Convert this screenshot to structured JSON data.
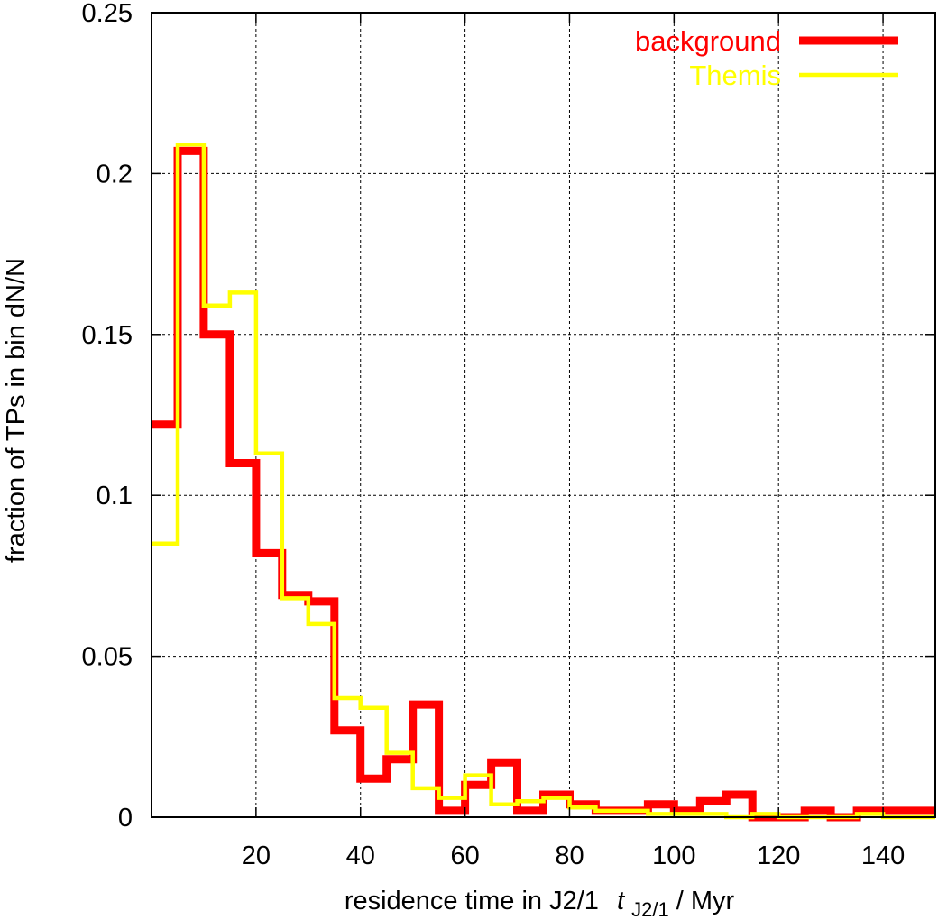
{
  "chart_data": {
    "type": "line",
    "step": true,
    "xlabel": "residence time in J2/1",
    "xlabel_symbol": "t",
    "xlabel_subscript": "J2/1",
    "xlabel_unit": " / Myr",
    "ylabel": "fraction of TPs in bin  dN/N",
    "xlim": [
      0,
      150
    ],
    "ylim": [
      0,
      0.25
    ],
    "xticks": [
      20,
      40,
      60,
      80,
      100,
      120,
      140
    ],
    "yticks": [
      0,
      0.05,
      0.1,
      0.15,
      0.2,
      0.25
    ],
    "ytick_labels": [
      "0",
      "0.05",
      "0.1",
      "0.15",
      "0.2",
      "0.25"
    ],
    "grid": true,
    "legend_position": "top-right",
    "bin_edges": [
      0,
      5,
      10,
      15,
      20,
      25,
      30,
      35,
      40,
      45,
      50,
      55,
      60,
      65,
      70,
      75,
      80,
      85,
      90,
      95,
      100,
      105,
      110,
      115,
      120,
      125,
      130,
      135,
      140,
      145,
      150
    ],
    "series": [
      {
        "name": "background",
        "color": "#ff0000",
        "values": [
          0.122,
          0.207,
          0.15,
          0.11,
          0.082,
          0.069,
          0.067,
          0.027,
          0.012,
          0.018,
          0.035,
          0.002,
          0.01,
          0.017,
          0.002,
          0.007,
          0.004,
          0.002,
          0.002,
          0.004,
          0.002,
          0.005,
          0.007,
          0.0,
          0.0,
          0.002,
          0.0,
          0.002,
          0.002,
          0.002
        ]
      },
      {
        "name": "Themis",
        "color": "#ffff00",
        "values": [
          0.085,
          0.209,
          0.159,
          0.163,
          0.113,
          0.068,
          0.06,
          0.037,
          0.034,
          0.02,
          0.009,
          0.006,
          0.013,
          0.004,
          0.005,
          0.006,
          0.003,
          0.002,
          0.002,
          0.001,
          0.001,
          0.001,
          0.0,
          0.001,
          0.0,
          0.0,
          0.0,
          0.001,
          0.0,
          0.0
        ]
      }
    ]
  }
}
